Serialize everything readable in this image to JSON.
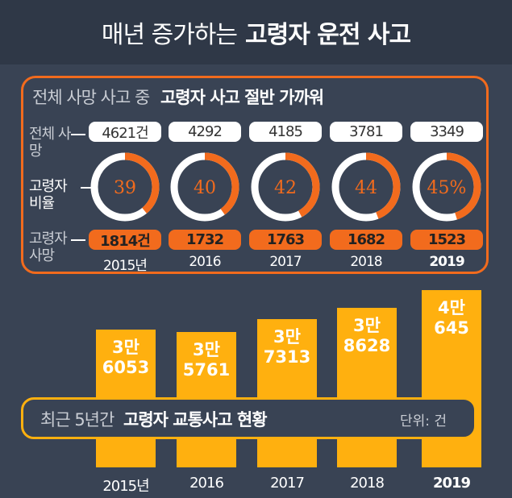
{
  "header": {
    "title_light": "매년 증가하는",
    "title_bold": "고령자 운전 사고"
  },
  "panel": {
    "title_light": "전체 사망 사고 중",
    "title_bold": "고령자 사고 절반 가까워",
    "row_total_label": "전체 사망",
    "row_ratio_label": "고령자 비율",
    "row_elder_label": "고령자 사망"
  },
  "colors": {
    "orange": "#f26b1d",
    "yellow": "#ffb00f",
    "background": "#394354"
  },
  "chart_data": [
    {
      "type": "table",
      "title": "전체 사망 사고 중 고령자 사고 절반 가까워",
      "years": [
        "2015년",
        "2016",
        "2017",
        "2018",
        "2019"
      ],
      "total_deaths": [
        "4621건",
        "4292",
        "4185",
        "3781",
        "3349"
      ],
      "elderly_ratio": [
        39,
        40,
        42,
        44,
        45
      ],
      "elderly_ratio_labels": [
        "39",
        "40",
        "42",
        "44",
        "45%"
      ],
      "elderly_deaths": [
        "1814건",
        "1732",
        "1763",
        "1682",
        "1523"
      ]
    },
    {
      "type": "bar",
      "title": "최근 5년간 고령자 교통사고 현황",
      "unit": "단위: 건",
      "categories": [
        "2015년",
        "2016",
        "2017",
        "2018",
        "2019"
      ],
      "values": [
        36053,
        35761,
        37313,
        38628,
        40645
      ],
      "value_labels": [
        [
          "3만",
          "6053"
        ],
        [
          "3만",
          "5761"
        ],
        [
          "3만",
          "7313"
        ],
        [
          "3만",
          "8628"
        ],
        [
          "4만",
          "645"
        ]
      ],
      "ylim": [
        0,
        42000
      ]
    }
  ]
}
